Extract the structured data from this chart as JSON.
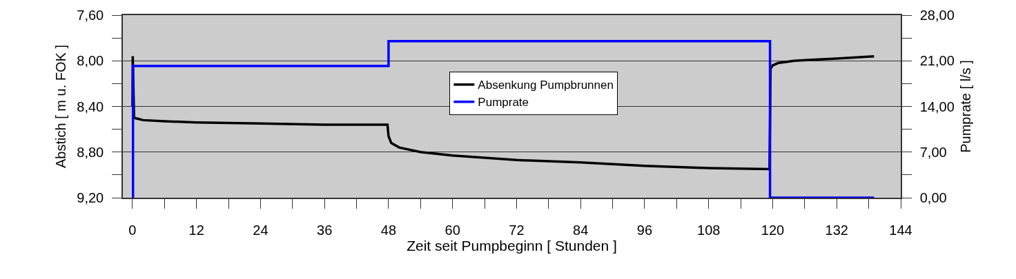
{
  "chart_data": {
    "type": "line",
    "xlabel": "Zeit seit Pumpbeginn [ Stunden ]",
    "ylabel": "Abstich [ m u. FOK ]",
    "y2label": "Pumprate [ l/s ]",
    "xlim": [
      -1.8,
      144
    ],
    "ylim": [
      9.2,
      7.6
    ],
    "y2lim": [
      0,
      28
    ],
    "xticks": [
      0,
      {
        "value": 6,
        "label": null
      },
      12,
      {
        "value": 18,
        "label": null
      },
      24,
      {
        "value": 30,
        "label": null
      },
      36,
      {
        "value": 42,
        "label": null
      },
      48,
      {
        "value": 54,
        "label": null
      },
      60,
      {
        "value": 66,
        "label": null
      },
      72,
      {
        "value": 78,
        "label": null
      },
      84,
      {
        "value": 90,
        "label": null
      },
      96,
      {
        "value": 102,
        "label": null
      },
      108,
      {
        "value": 114,
        "label": null
      },
      120,
      {
        "value": 126,
        "label": null
      },
      132,
      {
        "value": 138,
        "label": null
      },
      144
    ],
    "yticks": [
      {
        "value": 7.6,
        "label": "7,60"
      },
      {
        "value": 7.8,
        "label": null
      },
      {
        "value": 8.0,
        "label": "8,00"
      },
      {
        "value": 8.2,
        "label": null
      },
      {
        "value": 8.4,
        "label": "8,40"
      },
      {
        "value": 8.6,
        "label": null
      },
      {
        "value": 8.8,
        "label": "8,80"
      },
      {
        "value": 9.0,
        "label": null
      },
      {
        "value": 9.2,
        "label": "9,20"
      }
    ],
    "y2ticks": [
      {
        "value": 0,
        "label": "0,00"
      },
      {
        "value": 3.5,
        "label": null
      },
      {
        "value": 7,
        "label": "7,00"
      },
      {
        "value": 10.5,
        "label": null
      },
      {
        "value": 14,
        "label": "14,00"
      },
      {
        "value": 17.5,
        "label": null
      },
      {
        "value": 21,
        "label": "21,00"
      },
      {
        "value": 24.5,
        "label": null
      },
      {
        "value": 28,
        "label": "28,00"
      }
    ],
    "grid": "y",
    "legend": "center",
    "line_style": "solid",
    "marker": "none",
    "series": [
      {
        "name": "Absenkung Pumpbrunnen",
        "color": "#000000",
        "x": [
          0,
          0.05,
          0.3,
          2,
          6,
          12,
          24,
          36,
          47.8,
          48,
          48.5,
          50,
          54,
          60,
          66,
          72,
          84,
          96,
          108,
          119.4,
          119.6,
          120,
          121,
          124,
          128,
          132,
          139
        ],
        "values": [
          8.4,
          7.96,
          8.5,
          8.52,
          8.53,
          8.54,
          8.55,
          8.56,
          8.56,
          8.66,
          8.72,
          8.76,
          8.8,
          8.83,
          8.85,
          8.87,
          8.89,
          8.92,
          8.94,
          8.95,
          8.07,
          8.04,
          8.02,
          8.0,
          7.99,
          7.98,
          7.96
        ]
      },
      {
        "name": "Pumprate",
        "type": "step",
        "axis": "y2",
        "color": "#0000ff",
        "x": [
          0,
          0.1,
          48,
          119.5,
          139
        ],
        "values": [
          0,
          20.2,
          24.0,
          0,
          0
        ]
      }
    ]
  }
}
